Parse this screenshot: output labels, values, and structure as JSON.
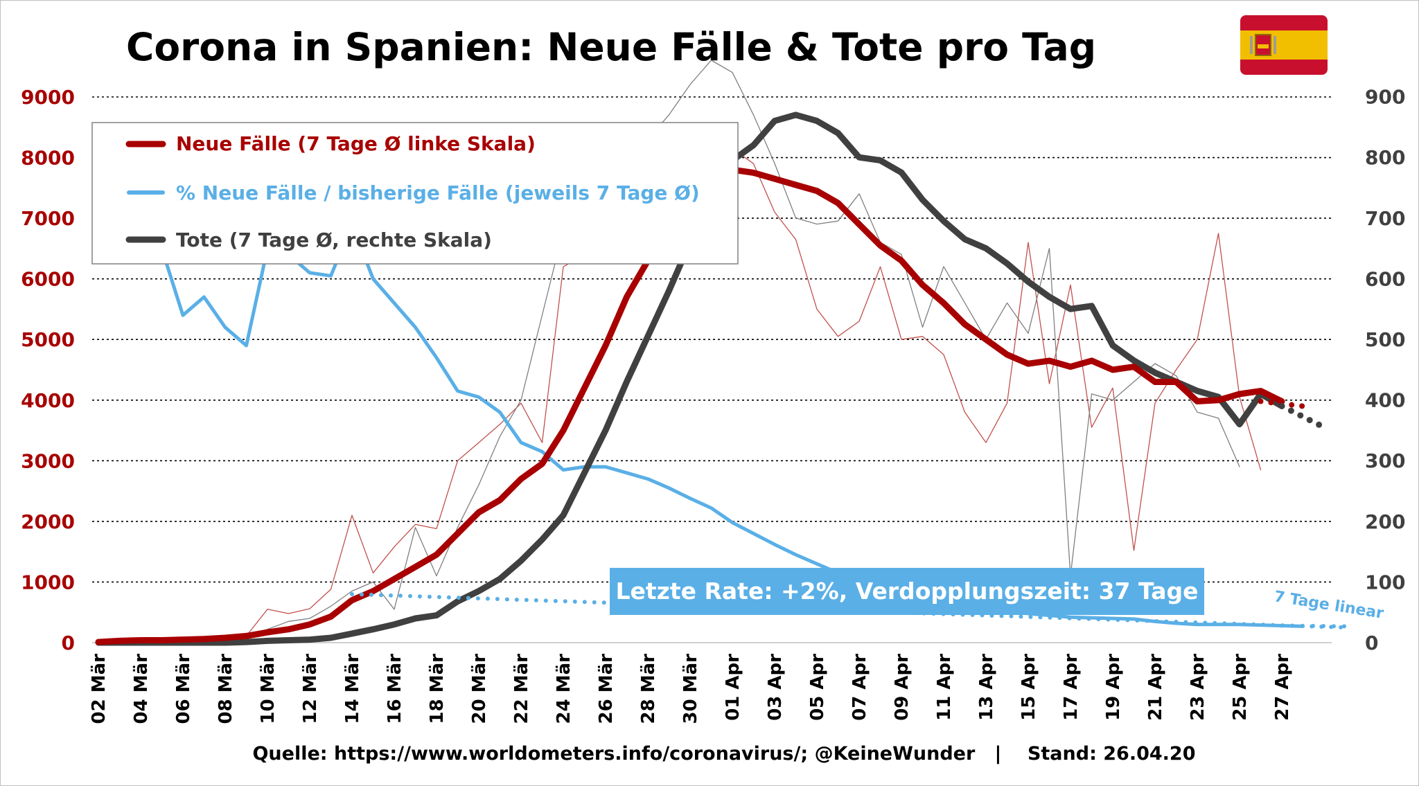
{
  "chart_data": {
    "type": "line",
    "title": "Corona in Spanien: Neue Fälle & Tote pro Tag",
    "flag": "spain-flag",
    "colors": {
      "cases": "#a80000",
      "cases_daily": "#c0504d",
      "deaths": "#404040",
      "deaths_daily": "#7f7f7f",
      "rate": "#5aafe6",
      "callout_bg": "#5aafe6"
    },
    "grid": true,
    "legend_position": "top-left",
    "x_tick_labels": [
      "02 Mär",
      "04 Mär",
      "06 Mär",
      "08 Mär",
      "10 Mär",
      "12 Mär",
      "14 Mär",
      "16 Mär",
      "18 Mär",
      "20 Mär",
      "22 Mär",
      "24 Mär",
      "26 Mär",
      "28 Mär",
      "30 Mär",
      "01 Apr",
      "03 Apr",
      "05 Apr",
      "07 Apr",
      "09 Apr",
      "11 Apr",
      "13 Apr",
      "15 Apr",
      "17 Apr",
      "19 Apr",
      "21 Apr",
      "23 Apr",
      "25 Apr",
      "27 Apr"
    ],
    "x_range": [
      0,
      58
    ],
    "y_left": {
      "min": 0,
      "max": 9000,
      "ticks": [
        "0",
        "1000",
        "2000",
        "3000",
        "4000",
        "5000",
        "6000",
        "7000",
        "8000",
        "9000"
      ]
    },
    "y_right": {
      "min": 0,
      "max": 1000,
      "ticks": [
        "0",
        "100",
        "200",
        "300",
        "400",
        "500",
        "600",
        "700",
        "800",
        "900"
      ]
    },
    "legend": [
      {
        "label": "Neue Fälle (7 Tage Ø linke Skala)",
        "key": "cases"
      },
      {
        "label": "% Neue Fälle / bisherige Fälle (jeweils 7 Tage Ø)",
        "key": "rate"
      },
      {
        "label": "Tote (7 Tage Ø, rechte Skala)",
        "key": "deaths"
      }
    ],
    "series": [
      {
        "name": "Neue Fälle (7 Tage Ø linke Skala)",
        "key": "cases",
        "axis": "left",
        "start_index": 0,
        "values": [
          10,
          30,
          40,
          40,
          50,
          60,
          80,
          110,
          170,
          220,
          300,
          430,
          700,
          850,
          1050,
          1250,
          1450,
          1800,
          2150,
          2350,
          2700,
          2950,
          3500,
          4200,
          4900,
          5700,
          6300,
          6900,
          7400,
          7700,
          7800,
          7750,
          7650,
          7550,
          7450,
          7250,
          6900,
          6550,
          6300,
          5900,
          5600,
          5250,
          5000,
          4750,
          4600,
          4650,
          4550,
          4650,
          4500,
          4550,
          4300,
          4300,
          3980,
          4000,
          4100,
          4150,
          3980
        ]
      },
      {
        "name": "Neue Fälle (täglich)",
        "key": "cases_daily",
        "axis": "left",
        "start_index": 0,
        "values": [
          20,
          40,
          40,
          40,
          60,
          80,
          100,
          110,
          550,
          480,
          560,
          880,
          2100,
          1150,
          1580,
          1950,
          1880,
          3000,
          3300,
          3600,
          3950,
          3300,
          6200,
          6400,
          6600,
          6300,
          7400,
          7300,
          7500,
          7900,
          8150,
          7900,
          7100,
          6650,
          5500,
          5050,
          5300,
          6200,
          5000,
          5050,
          4750,
          3800,
          3300,
          3950,
          6600,
          4270,
          5900,
          3550,
          4200,
          1520,
          3950,
          4500,
          5000,
          6750,
          4050,
          2850
        ]
      },
      {
        "name": "Tote (7 Tage Ø, rechte Skala)",
        "key": "deaths",
        "axis": "right",
        "start_index": 0,
        "values": [
          0,
          0,
          0,
          0,
          0,
          0,
          0,
          1,
          3,
          4,
          5,
          8,
          15,
          22,
          30,
          40,
          45,
          68,
          85,
          105,
          135,
          170,
          210,
          280,
          350,
          430,
          505,
          580,
          660,
          730,
          795,
          820,
          860,
          870,
          860,
          840,
          800,
          795,
          775,
          730,
          695,
          665,
          650,
          625,
          595,
          570,
          550,
          555,
          490,
          465,
          445,
          430,
          415,
          405,
          360,
          410,
          390
        ]
      },
      {
        "name": "Tote (täglich)",
        "key": "deaths_daily",
        "axis": "right",
        "start_index": 0,
        "values": [
          0,
          0,
          0,
          0,
          0,
          3,
          5,
          10,
          22,
          35,
          40,
          60,
          85,
          100,
          55,
          190,
          110,
          190,
          260,
          340,
          400,
          540,
          680,
          660,
          720,
          750,
          830,
          870,
          920,
          960,
          940,
          870,
          790,
          700,
          690,
          695,
          740,
          660,
          640,
          520,
          620,
          560,
          500,
          560,
          510,
          650,
          110,
          410,
          400,
          430,
          460,
          440,
          380,
          370,
          290
        ]
      },
      {
        "name": "% Neue Fälle / bisherige Fälle (jeweils 7 Tage Ø)",
        "key": "rate",
        "axis": "left",
        "start_index": 0,
        "values": [
          6500,
          6450,
          6550,
          6500,
          5400,
          5700,
          5200,
          4900,
          6500,
          6400,
          6100,
          6050,
          6900,
          6000,
          5600,
          5200,
          4700,
          4150,
          4050,
          3800,
          3300,
          3150,
          2850,
          2900,
          2900,
          2800,
          2700,
          2550,
          2380,
          2220,
          1980,
          1800,
          1620,
          1450,
          1300,
          1150,
          1050,
          950,
          870,
          800,
          720,
          650,
          580,
          520,
          480,
          450,
          420,
          410,
          400,
          390,
          350,
          320,
          300,
          300,
          300,
          290,
          280,
          270
        ]
      },
      {
        "name": "7 Tage linear",
        "key": "rate_trend",
        "axis": "left",
        "start_index": 12,
        "values": [
          800,
          250
        ]
      }
    ],
    "projection": {
      "cases": [
        [
          55,
          3980
        ],
        [
          57,
          3900
        ]
      ],
      "deaths": [
        [
          56,
          390
        ],
        [
          58,
          355
        ]
      ],
      "rate": [
        [
          56,
          280
        ],
        [
          59,
          270
        ]
      ]
    },
    "annotations": {
      "callout": "Letzte Rate: +2%, Verdopplungszeit: 37 Tage",
      "trend_label": "7 Tage linear"
    }
  },
  "source_text": "Quelle: https://www.worldometers.info/coronavirus/; @KeineWunder   |    Stand: 26.04.20"
}
